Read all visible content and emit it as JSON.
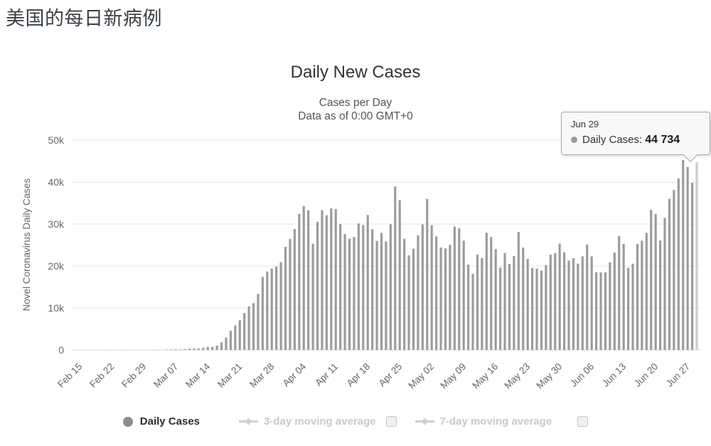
{
  "page": {
    "title": "美国的每日新病例"
  },
  "chart": {
    "title": "Daily New Cases",
    "subtitle_line1": "Cases per Day",
    "subtitle_line2": "Data as of 0:00 GMT+0",
    "y_axis_title": "Novel Coronavirus Daily Cases"
  },
  "tooltip": {
    "date": "Jun 29",
    "series_label": "Daily Cases:",
    "value": "44 734"
  },
  "legend": {
    "items": [
      {
        "label": "Daily Cases",
        "active": true,
        "marker": "circle"
      },
      {
        "label": "3-day moving average",
        "active": false,
        "marker": "line-diamond",
        "checkbox": true
      },
      {
        "label": "7-day moving average",
        "active": false,
        "marker": "line-diamond",
        "checkbox": true
      }
    ]
  },
  "chart_data": {
    "type": "bar",
    "title": "Daily New Cases",
    "subtitle": "Cases per Day — Data as of 0:00 GMT+0",
    "ylabel": "Novel Coronavirus Daily Cases",
    "ylim": [
      0,
      50000
    ],
    "grid": true,
    "legend_position": "bottom",
    "bar_color": "#9c9c9c",
    "hovered_bar_color": "#cccccc",
    "hovered_index": 135,
    "hovered_point": {
      "date": "Jun 29",
      "value": 44734
    },
    "start_date": "Feb 15",
    "end_date": "Jun 29",
    "y_tick_labels": [
      "0",
      "10k",
      "20k",
      "30k",
      "40k",
      "50k"
    ],
    "x_tick_labels": [
      "Feb 15",
      "Feb 22",
      "Feb 29",
      "Mar 07",
      "Mar 14",
      "Mar 21",
      "Mar 28",
      "Apr 04",
      "Apr 11",
      "Apr 18",
      "Apr 25",
      "May 02",
      "May 09",
      "May 16",
      "May 23",
      "May 30",
      "Jun 06",
      "Jun 13",
      "Jun 20",
      "Jun 27"
    ],
    "x_tick_every_days": 7,
    "values": [
      0,
      0,
      1,
      0,
      0,
      2,
      19,
      0,
      0,
      0,
      18,
      4,
      3,
      1,
      8,
      6,
      23,
      25,
      37,
      98,
      112,
      148,
      122,
      183,
      290,
      319,
      377,
      548,
      721,
      738,
      1085,
      1828,
      2946,
      4571,
      5842,
      7087,
      8831,
      10410,
      11166,
      13344,
      17408,
      18698,
      19418,
      19884,
      20922,
      24571,
      26473,
      28819,
      32425,
      34272,
      33264,
      25316,
      30561,
      33323,
      32105,
      33752,
      33579,
      30003,
      27620,
      26522,
      26945,
      30148,
      29735,
      32165,
      28785,
      25995,
      27879,
      25858,
      29973,
      38958,
      35697,
      26509,
      22541,
      24132,
      27326,
      29917,
      36007,
      29744,
      27048,
      24420,
      24193,
      25065,
      29411,
      28995,
      26046,
      20329,
      18117,
      22752,
      21906,
      27930,
      26906,
      24045,
      19637,
      23094,
      20509,
      22409,
      28098,
      24399,
      21678,
      19543,
      19377,
      18918,
      20219,
      22715,
      23086,
      25337,
      23290,
      21290,
      21873,
      20549,
      22303,
      25108,
      22302,
      18521,
      18471,
      18516,
      20839,
      23208,
      27199,
      25267,
      19583,
      20557,
      25236,
      26031,
      27902,
      33388,
      32411,
      26079,
      31496,
      36015,
      38115,
      40870,
      45255,
      43581,
      39822,
      44734
    ]
  }
}
